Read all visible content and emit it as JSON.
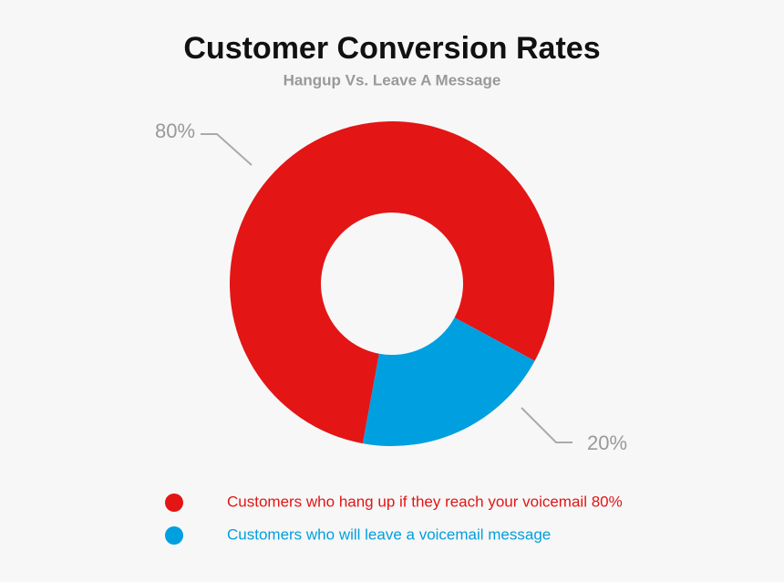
{
  "chart_data": {
    "type": "donut",
    "title": "Customer Conversion Rates",
    "subtitle": "Hangup Vs. Leave A Message",
    "categories": [
      "Customers who hang up if they reach your voicemail 80%",
      "Customers who will leave a voicemail message"
    ],
    "values": [
      80,
      20
    ],
    "value_labels": [
      "80%",
      "20%"
    ],
    "colors": [
      "#e31515",
      "#009fdf"
    ]
  }
}
